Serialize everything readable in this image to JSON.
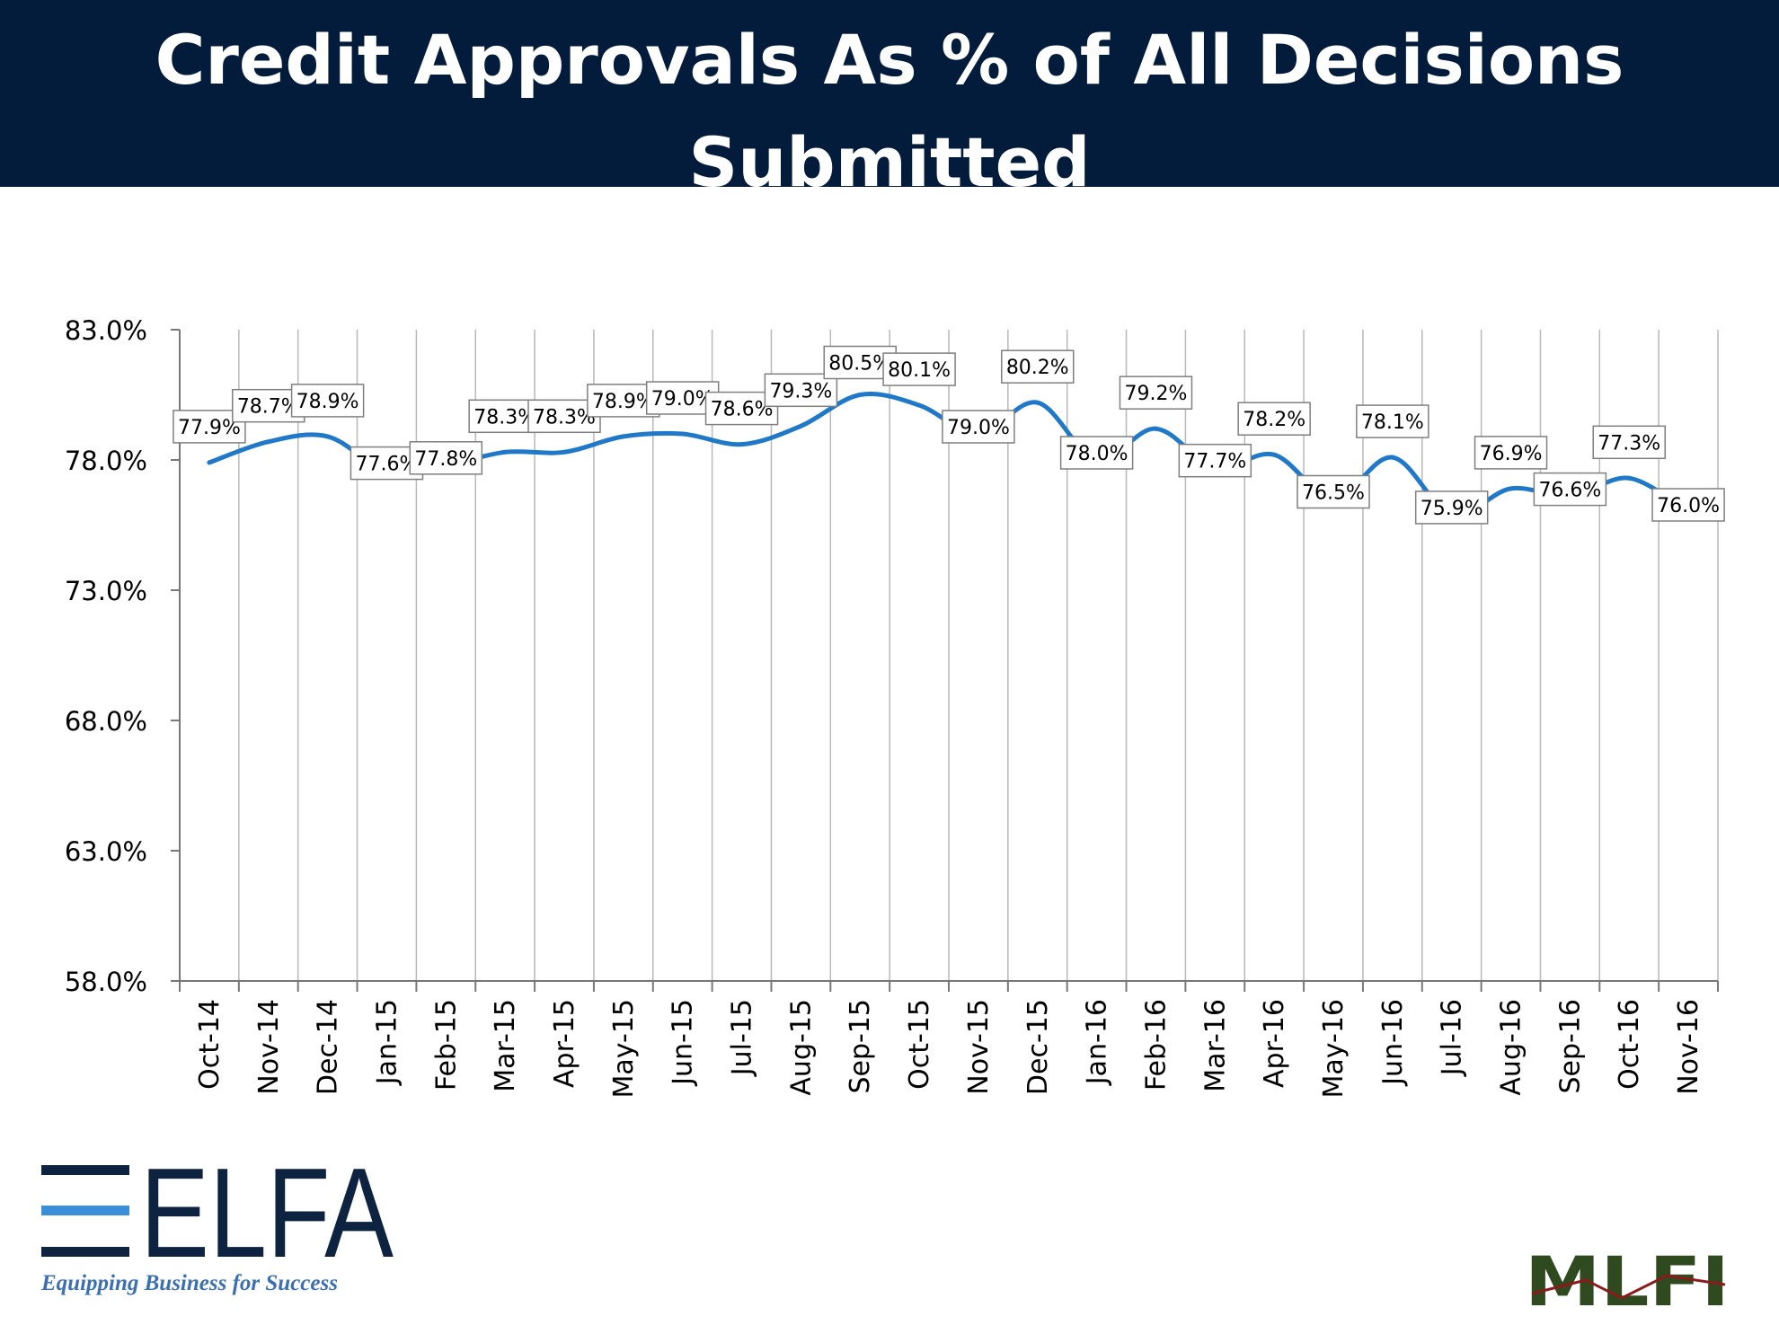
{
  "header": {
    "title_line1": "Credit Approvals As % of All Decisions",
    "title_line2": "Submitted"
  },
  "chart_data": {
    "type": "line",
    "title": "Credit Approvals As % of All Decisions Submitted",
    "categories": [
      "Oct-14",
      "Nov-14",
      "Dec-14",
      "Jan-15",
      "Feb-15",
      "Mar-15",
      "Apr-15",
      "May-15",
      "Jun-15",
      "Jul-15",
      "Aug-15",
      "Sep-15",
      "Oct-15",
      "Nov-15",
      "Dec-15",
      "Jan-16",
      "Feb-16",
      "Mar-16",
      "Apr-16",
      "May-16",
      "Jun-16",
      "Jul-16",
      "Aug-16",
      "Sep-16",
      "Oct-16",
      "Nov-16"
    ],
    "values": [
      77.9,
      78.7,
      78.9,
      77.6,
      77.8,
      78.3,
      78.3,
      78.9,
      79.0,
      78.6,
      79.3,
      80.5,
      80.1,
      79.0,
      80.2,
      78.0,
      79.2,
      77.7,
      78.2,
      76.5,
      78.1,
      75.9,
      76.9,
      76.6,
      77.3,
      76.0
    ],
    "data_labels": [
      "77.9%",
      "78.7%",
      "78.9%",
      "77.6%",
      "77.8%",
      "78.3%",
      "78.3%",
      "78.9%",
      "79.0%",
      "78.6%",
      "79.3%",
      "80.5%",
      "80.1%",
      "79.0%",
      "80.2%",
      "78.0%",
      "79.2%",
      "77.7%",
      "78.2%",
      "76.5%",
      "78.1%",
      "75.9%",
      "76.9%",
      "76.6%",
      "77.3%",
      "76.0%"
    ],
    "y_ticks": [
      "58.0%",
      "63.0%",
      "68.0%",
      "73.0%",
      "78.0%",
      "83.0%"
    ],
    "y_tick_values": [
      58,
      63,
      68,
      73,
      78,
      83
    ],
    "ylim": [
      58,
      83
    ],
    "grid": "vertical",
    "line_color": "#1f78c8",
    "xlabel": "",
    "ylabel": ""
  },
  "logos": {
    "elfa_text": "ELFA",
    "elfa_tagline": "Equipping Business for Success",
    "mlfi_text": "MLFI",
    "elfa_color": "#0d2340",
    "elfa_accent": "#3b8fd6",
    "mlfi_color": "#2f4a1f"
  }
}
